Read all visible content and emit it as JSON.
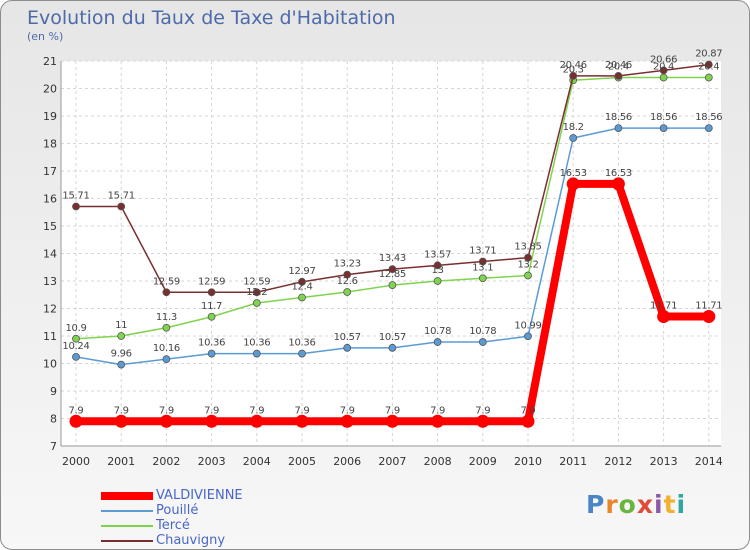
{
  "title": "Evolution du Taux de Taxe d'Habitation",
  "unit_label": "(en %)",
  "logo_text": "Proxiti",
  "colors": {
    "title": "#4d6aa8",
    "valdivienne": "#ff0000",
    "pouille": "#5b9bd5",
    "terce": "#7fd34f",
    "chauvigny": "#7a2f2f"
  },
  "chart_data": {
    "type": "line",
    "title": "Evolution du Taux de Taxe d'Habitation",
    "ylabel": "(en %)",
    "xlabel": "",
    "x": [
      "2000",
      "2001",
      "2002",
      "2003",
      "2004",
      "2005",
      "2006",
      "2007",
      "2008",
      "2009",
      "2010",
      "2011",
      "2012",
      "2013",
      "2014"
    ],
    "ylim": [
      7,
      21
    ],
    "yticks": [
      7,
      8,
      9,
      10,
      11,
      12,
      13,
      14,
      15,
      16,
      17,
      18,
      19,
      20,
      21
    ],
    "grid": true,
    "legend_position": "bottom-left",
    "series": [
      {
        "name": "VALDIVIENNE",
        "color": "#ff0000",
        "values": [
          7.9,
          7.9,
          7.9,
          7.9,
          7.9,
          7.9,
          7.9,
          7.9,
          7.9,
          7.9,
          7.9,
          16.53,
          16.53,
          11.71,
          11.71
        ]
      },
      {
        "name": "Pouillé",
        "color": "#5b9bd5",
        "values": [
          10.24,
          9.96,
          10.16,
          10.36,
          10.36,
          10.36,
          10.57,
          10.57,
          10.78,
          10.78,
          10.99,
          18.2,
          18.56,
          18.56,
          18.56
        ]
      },
      {
        "name": "Tercé",
        "color": "#7fd34f",
        "values": [
          10.9,
          11,
          11.3,
          11.7,
          12.2,
          12.4,
          12.6,
          12.85,
          13,
          13.1,
          13.2,
          20.3,
          20.4,
          20.4,
          20.4
        ]
      },
      {
        "name": "Chauvigny",
        "color": "#7a2f2f",
        "values": [
          15.71,
          15.71,
          12.59,
          12.59,
          12.59,
          12.97,
          13.23,
          13.43,
          13.57,
          13.71,
          13.85,
          20.46,
          20.46,
          20.66,
          20.87
        ]
      }
    ]
  }
}
